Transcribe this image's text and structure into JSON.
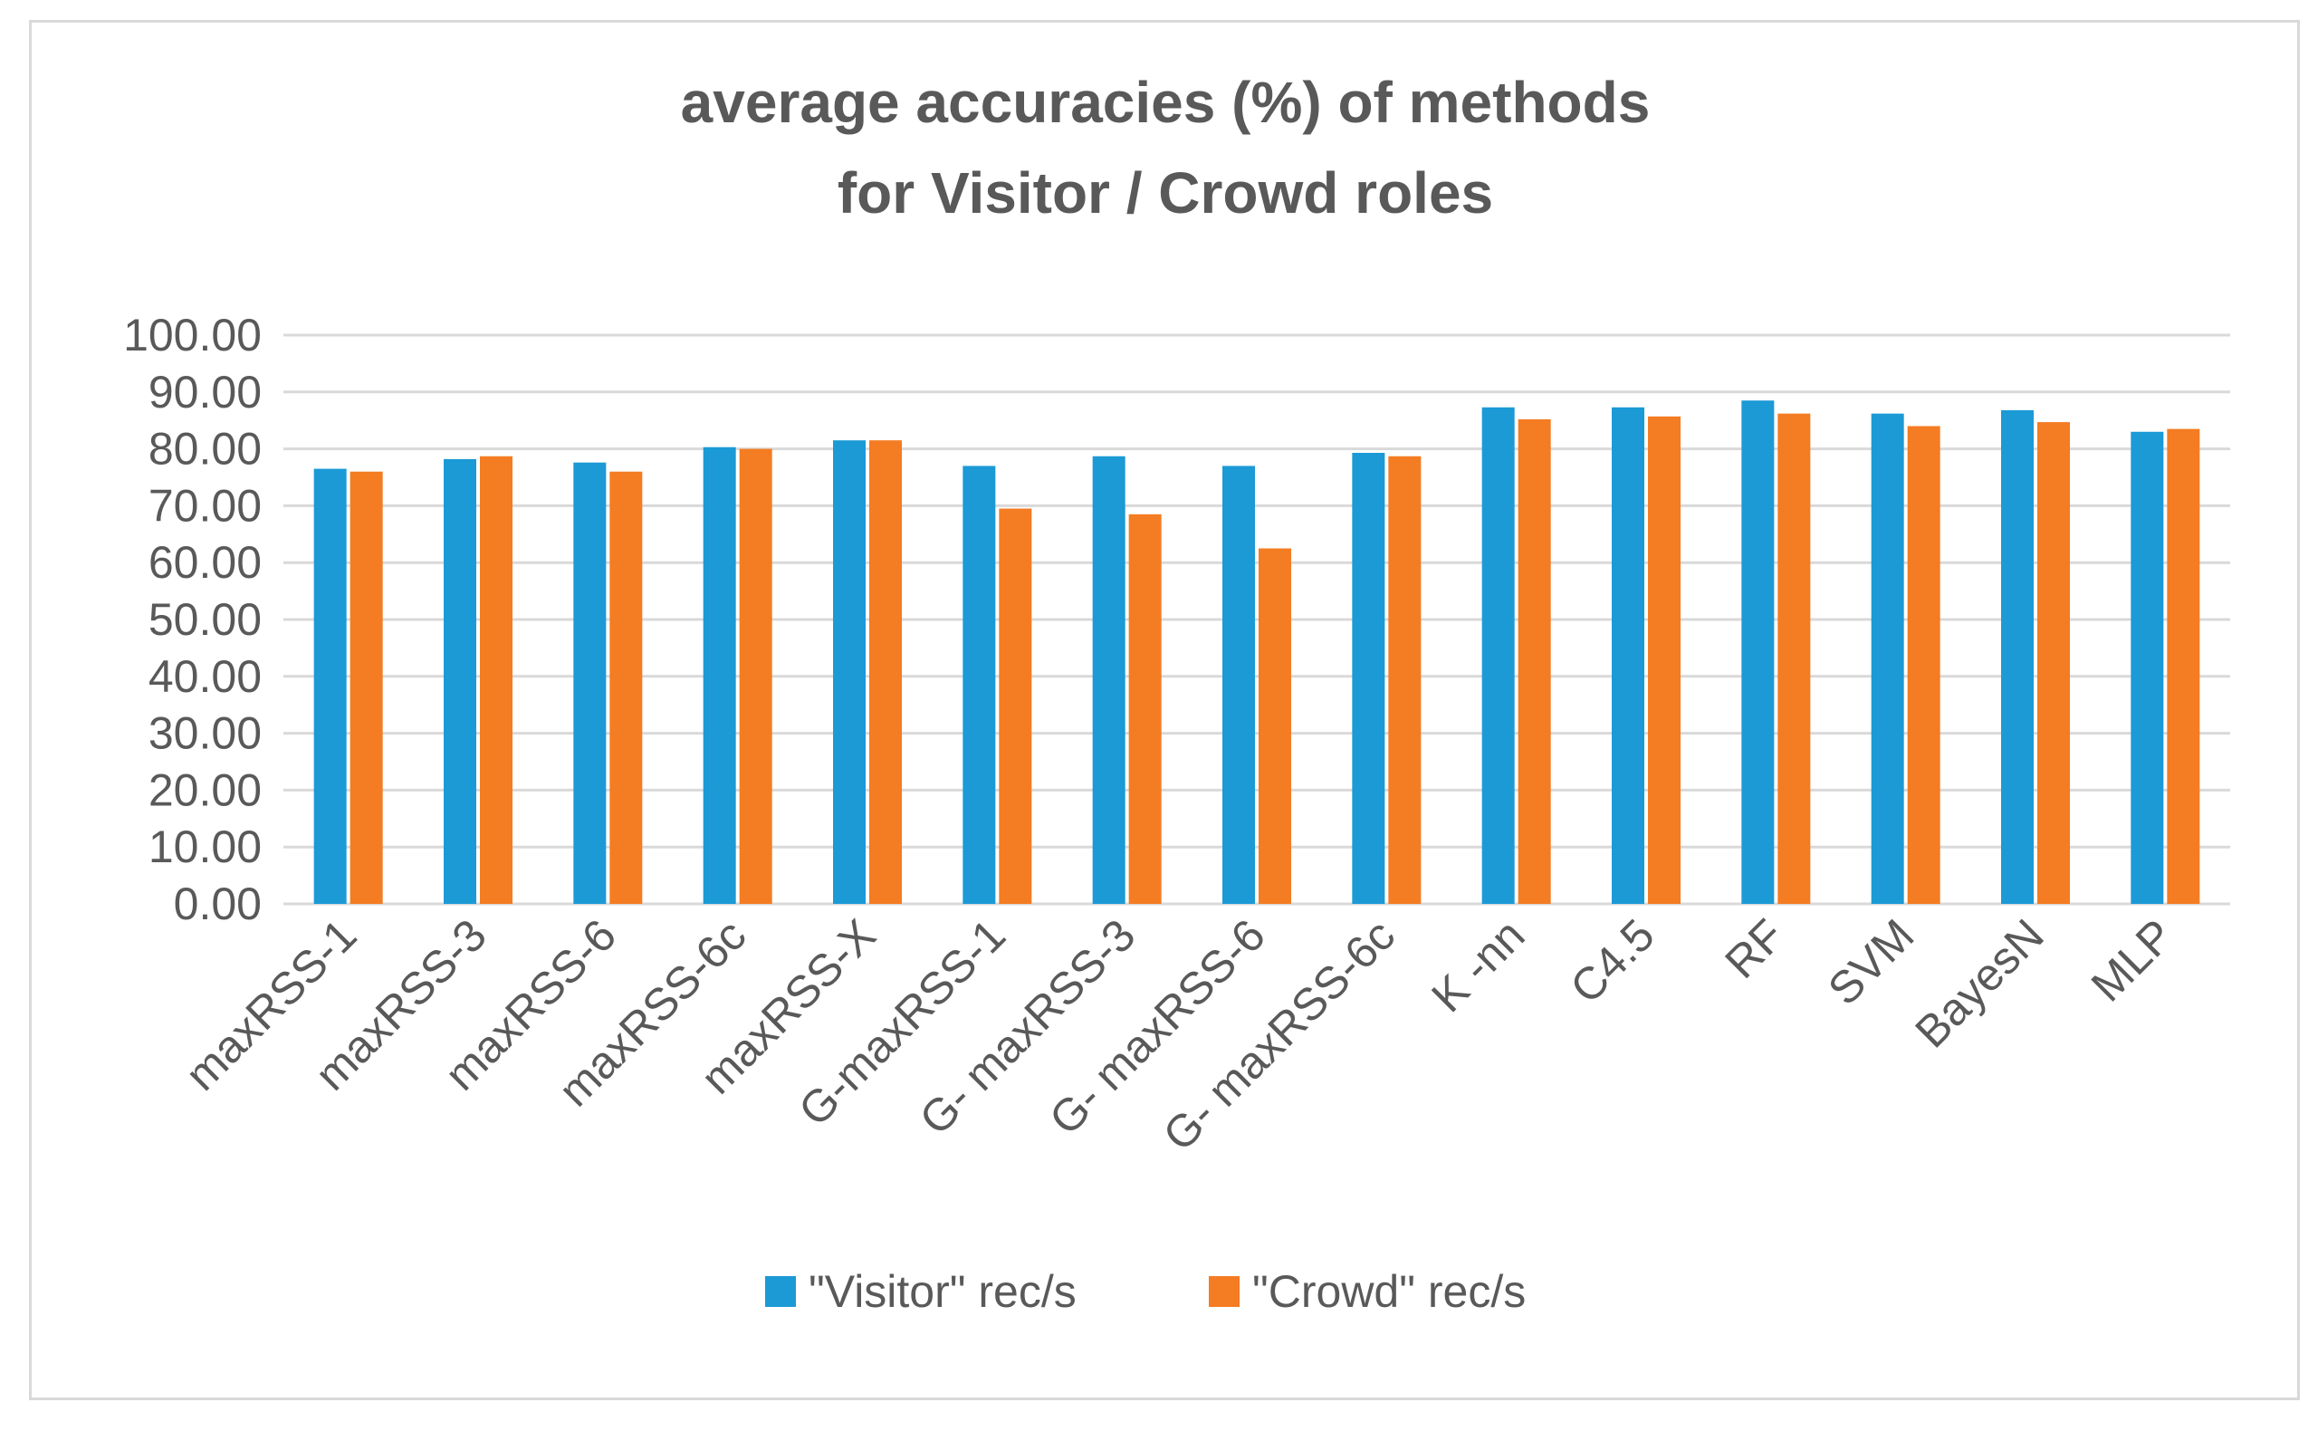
{
  "chart_data": {
    "type": "bar",
    "title": [
      "average accuracies (%) of methods",
      "for Visitor / Crowd roles"
    ],
    "xlabel": "",
    "ylabel": "",
    "ylim": [
      0,
      100
    ],
    "ytick_step": 10,
    "ytick_labels": [
      "0.00",
      "10.00",
      "20.00",
      "30.00",
      "40.00",
      "50.00",
      "60.00",
      "70.00",
      "80.00",
      "90.00",
      "100.00"
    ],
    "grid": true,
    "legend_position": "bottom",
    "categories": [
      "maxRSS-1",
      "maxRSS-3",
      "maxRSS-6",
      "maxRSS-6c",
      "maxRSS-X",
      "G-maxRSS-1",
      "G- maxRSS-3",
      "G- maxRSS-6",
      "G- maxRSS-6c",
      "K -nn",
      "C4.5",
      "RF",
      "SVM",
      "BayesN",
      "MLP"
    ],
    "series": [
      {
        "name": "\"Visitor\" rec/s",
        "color": "#1b9ad6",
        "values": [
          76.5,
          78.2,
          77.6,
          80.3,
          81.5,
          77.0,
          78.7,
          77.0,
          79.3,
          87.3,
          87.3,
          88.5,
          86.2,
          86.8,
          83.0
        ]
      },
      {
        "name": "\"Crowd\" rec/s",
        "color": "#f47c22",
        "values": [
          76.0,
          78.7,
          76.0,
          80.0,
          81.5,
          69.5,
          68.5,
          62.5,
          78.7,
          85.2,
          85.7,
          86.2,
          84.0,
          84.7,
          83.5
        ]
      }
    ]
  }
}
